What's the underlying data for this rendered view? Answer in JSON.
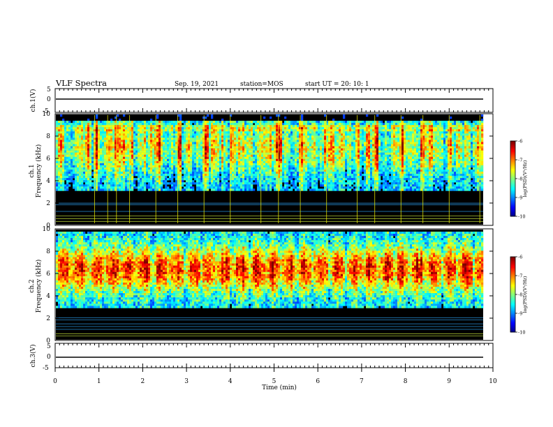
{
  "header": {
    "title": "VLF Spectra",
    "date": "Sep. 19, 2021",
    "station": "station=MOS",
    "start": "start  UT =   20: 10: 1"
  },
  "colors": {
    "background": "#000000",
    "frame": "#000000"
  },
  "chart_data": [
    {
      "type": "line",
      "panel": "ch1-waveform",
      "ylabel": "ch.1(V)",
      "ylim": [
        -5,
        5
      ],
      "yticks": [
        "5",
        "0",
        "-5"
      ],
      "xlim": [
        0,
        10
      ],
      "trace_level": 0
    },
    {
      "type": "heatmap",
      "panel": "ch1-spectrogram",
      "ylabel_top": "ch.1",
      "ylabel": "Frequency (kHz)",
      "ylim": [
        0,
        10
      ],
      "yticks": [
        "0",
        "2",
        "4",
        "6",
        "8",
        "10"
      ],
      "xlim": [
        0,
        9.8
      ],
      "colorbar": {
        "label": "log(PSD)(V²/Hz)",
        "ticks": [
          "-6",
          "-7",
          "-8",
          "-9",
          "-10"
        ],
        "range": [
          -10,
          -6
        ]
      },
      "features": {
        "broadband_upper_khz": [
          3,
          9.3
        ],
        "dominant_band_khz": [
          5,
          9
        ],
        "spike_times_min": [
          0.9,
          1.2,
          1.4,
          1.7,
          2.3,
          2.8,
          3.4,
          4.0,
          4.7,
          5.1,
          5.6,
          6.2,
          6.9,
          7.3,
          7.9,
          8.4,
          9.0,
          9.7
        ]
      }
    },
    {
      "type": "heatmap",
      "panel": "ch2-spectrogram",
      "ylabel_top": "ch.2",
      "ylabel": "Frequency (kHz)",
      "ylim": [
        0,
        10
      ],
      "yticks": [
        "0",
        "2",
        "4",
        "6",
        "8",
        "10"
      ],
      "xlim": [
        0,
        9.8
      ],
      "colorbar": {
        "label": "log(PSD)(V²/Hz)",
        "ticks": [
          "-6",
          "-7",
          "-8",
          "-9",
          "-10"
        ],
        "range": [
          -10,
          -6
        ]
      },
      "features": {
        "broadband_upper_khz": [
          3,
          9.8
        ],
        "dominant_band_khz": [
          5,
          8
        ]
      }
    },
    {
      "type": "line",
      "panel": "ch3-waveform",
      "ylabel": "ch.3(V)",
      "ylim": [
        -5,
        5
      ],
      "yticks": [
        "5",
        "0",
        "-5"
      ],
      "xlim": [
        0,
        10
      ],
      "trace_level": 0,
      "xlabel": "Time  (min)",
      "xticks": [
        "0",
        "1",
        "2",
        "3",
        "4",
        "5",
        "6",
        "7",
        "8",
        "9",
        "10"
      ]
    }
  ]
}
